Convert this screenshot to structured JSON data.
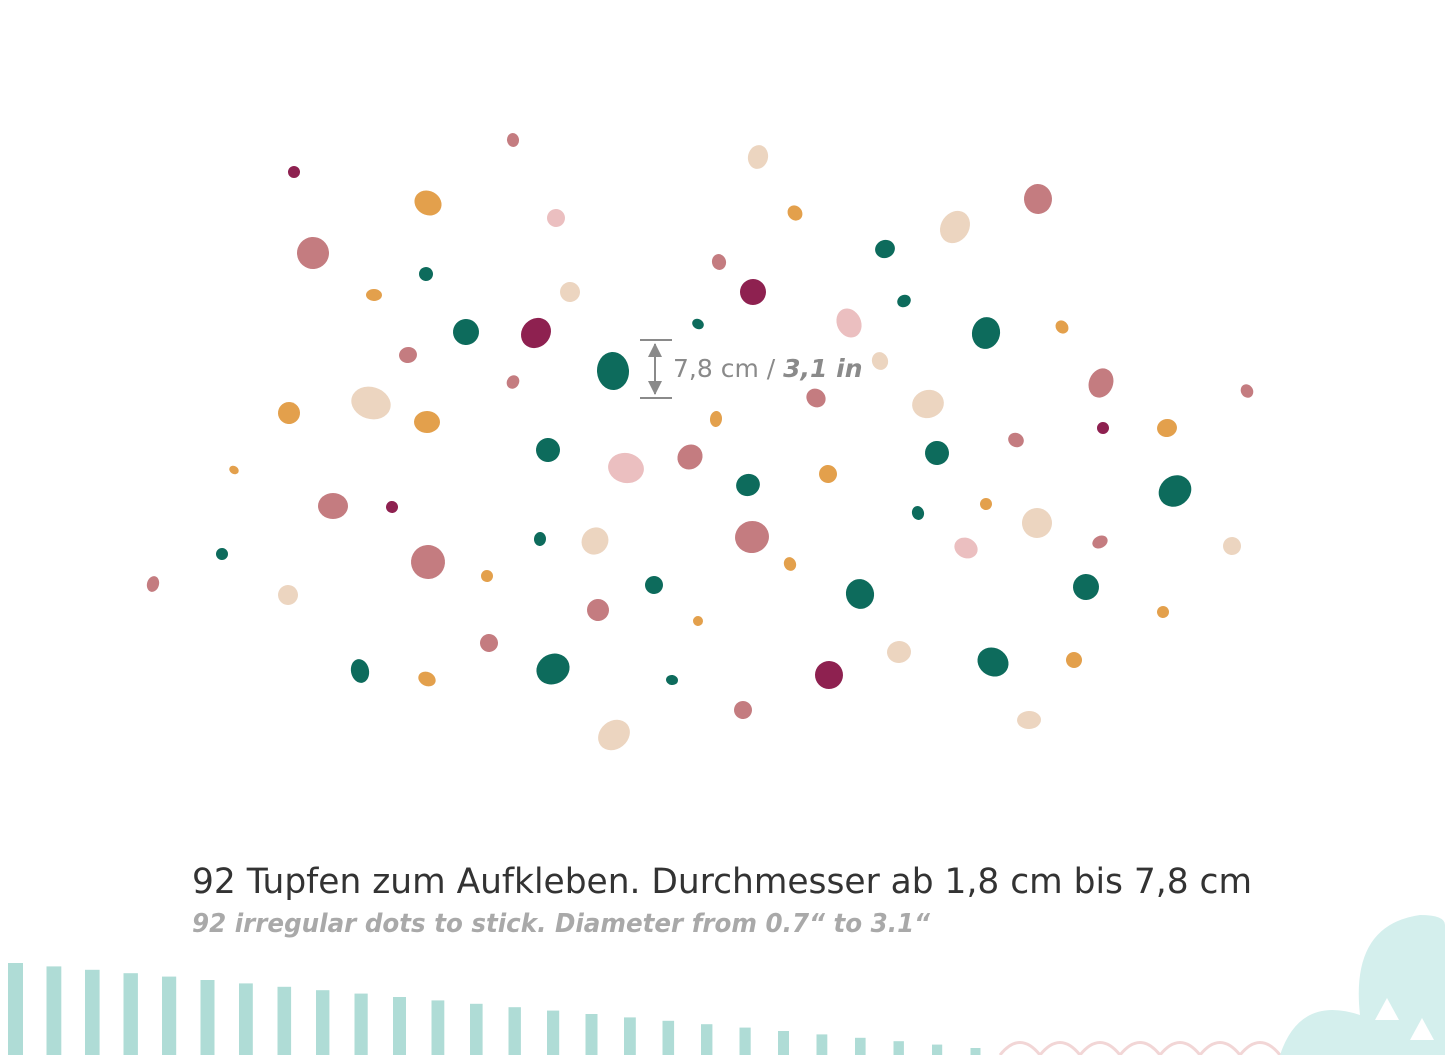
{
  "dimension_label": {
    "metric": "7,8 cm",
    "separator": "/",
    "imperial": "3,1 in"
  },
  "caption": {
    "german": "92 Tupfen zum Aufkleben. Durchmesser ab 1,8 cm bis 7,8 cm",
    "english": "92 irregular dots to stick. Diameter from 0.7“ to 3.1“"
  }
}
